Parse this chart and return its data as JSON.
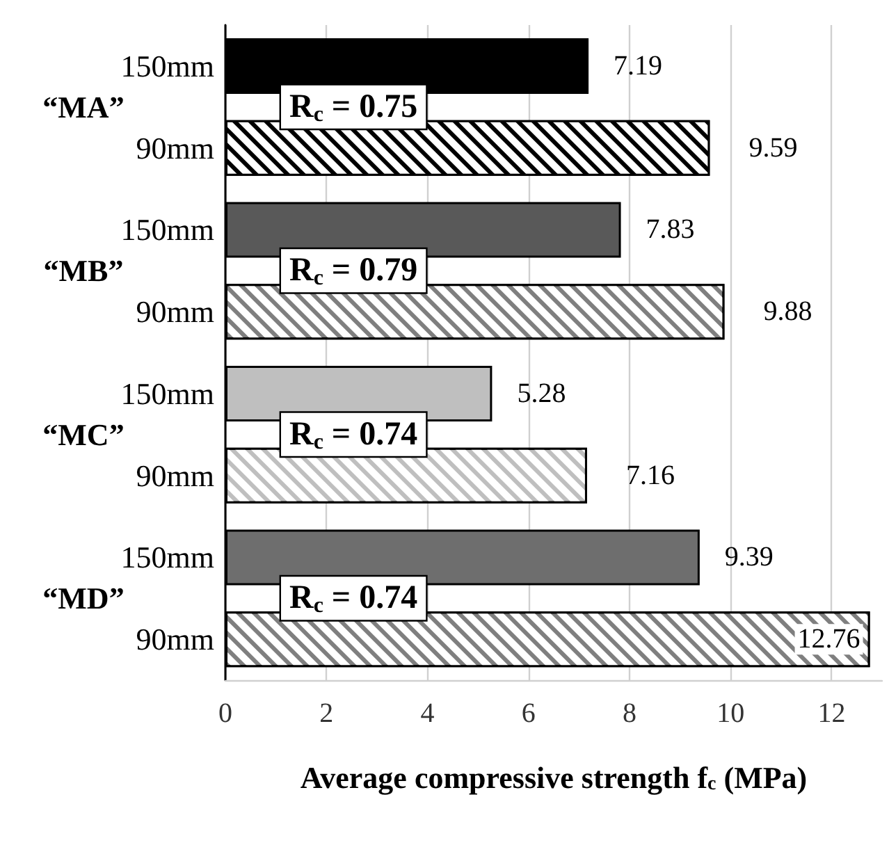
{
  "chart_data": {
    "type": "bar",
    "orientation": "horizontal",
    "categories": [
      "150mm",
      "90mm",
      "150mm",
      "90mm",
      "150mm",
      "90mm",
      "150mm",
      "90mm"
    ],
    "values": [
      7.19,
      9.59,
      7.83,
      9.88,
      5.28,
      7.16,
      9.39,
      12.76
    ],
    "colors": [
      "#000000",
      "#000000",
      "#595959",
      "#7f7f7f",
      "#bfbfbf",
      "#bfbfbf",
      "#6e6e6e",
      "#7f7f7f"
    ],
    "xlim": [
      0,
      13
    ],
    "xticks": [
      0,
      2,
      4,
      6,
      8,
      10,
      12
    ],
    "xlabel": "Average compressive strength f$_{c}$ (MPa)",
    "annotations": [
      "“MA”",
      "“MB”",
      "“MC”",
      "“MD”",
      "R$_{c}$ = 0.75",
      "R$_{c}$ = 0.79",
      "R$_{c}$ = 0.74",
      "R$_{c}$ = 0.74"
    ],
    "data_labels": true,
    "grid": "x"
  }
}
